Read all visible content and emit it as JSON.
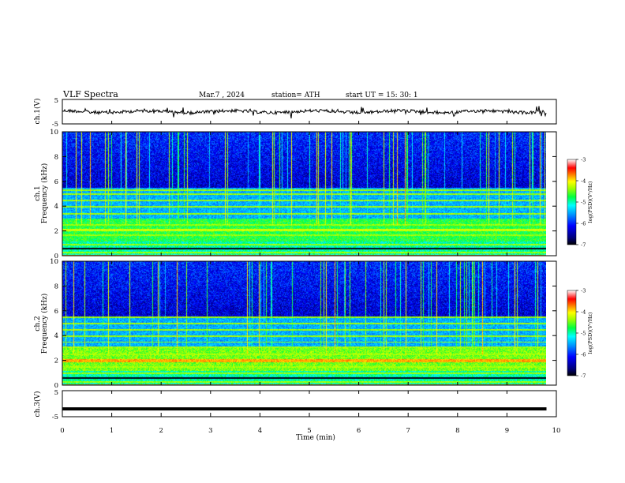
{
  "header": {
    "title": "VLF  Spectra",
    "date": "Mar.7  , 2024",
    "station": "station= ATH",
    "start_ut": "start  UT  =    15: 30: 1"
  },
  "colors": {
    "background": "#ffffff",
    "axis": "#000000",
    "colormap": [
      "#000000",
      "#000066",
      "#0000ff",
      "#00a0ff",
      "#00ffff",
      "#00ff40",
      "#b0ff00",
      "#ffff00",
      "#ff8000",
      "#ff0000",
      "#ffffff"
    ]
  },
  "chart_data": [
    {
      "type": "line",
      "panel": "ch1-waveform",
      "ylabel": "ch.1(V)",
      "yticks": [
        "5",
        "-5"
      ],
      "ylim": [
        -5,
        5
      ],
      "xlim": [
        0,
        10
      ],
      "trace_level_V": 0,
      "trace_color": "#000000"
    },
    {
      "type": "heatmap",
      "panel": "ch1-spectrogram",
      "ylabel_channel": "ch.1",
      "ylabel": "Frequency (kHz)",
      "yticks": [
        "0",
        "2",
        "4",
        "6",
        "8",
        "10"
      ],
      "ylim": [
        0,
        10
      ],
      "xlim": [
        0,
        10
      ],
      "data_end_min": 9.8,
      "strong_bands_kHz": [
        0.3,
        0.9,
        1.7,
        2.1,
        2.5,
        3.4,
        4.0,
        4.5,
        5.0,
        5.3
      ],
      "colorbar": {
        "label": "log(PSD)(V²/Hz)",
        "ticks": [
          "-3",
          "-4",
          "-5",
          "-6",
          "-7"
        ],
        "range": [
          -7,
          -3
        ]
      }
    },
    {
      "type": "heatmap",
      "panel": "ch2-spectrogram",
      "ylabel_channel": "ch.2",
      "ylabel": "Frequency (kHz)",
      "yticks": [
        "0",
        "2",
        "4",
        "6",
        "8",
        "10"
      ],
      "ylim": [
        0,
        10
      ],
      "xlim": [
        0,
        10
      ],
      "data_end_min": 9.8,
      "strong_bands_kHz": [
        0.3,
        1.0,
        1.5,
        2.0,
        2.5,
        3.1,
        3.5,
        4.0,
        4.5,
        5.0,
        5.5
      ],
      "colorbar": {
        "label": "log(PSD)(V²/Hz)",
        "ticks": [
          "-3",
          "-4",
          "-5",
          "-6",
          "-7"
        ],
        "range": [
          -7,
          -3
        ]
      }
    },
    {
      "type": "line",
      "panel": "ch3-waveform",
      "ylabel": "ch.3(V)",
      "yticks": [
        "5",
        "-5"
      ],
      "ylim": [
        -5,
        5
      ],
      "xlim": [
        0,
        10
      ],
      "trace_level_V": -2,
      "trace_color": "#000000",
      "xlabel": "Time  (min)",
      "xticks": [
        "0",
        "1",
        "2",
        "3",
        "4",
        "5",
        "6",
        "7",
        "8",
        "9",
        "10"
      ]
    }
  ]
}
